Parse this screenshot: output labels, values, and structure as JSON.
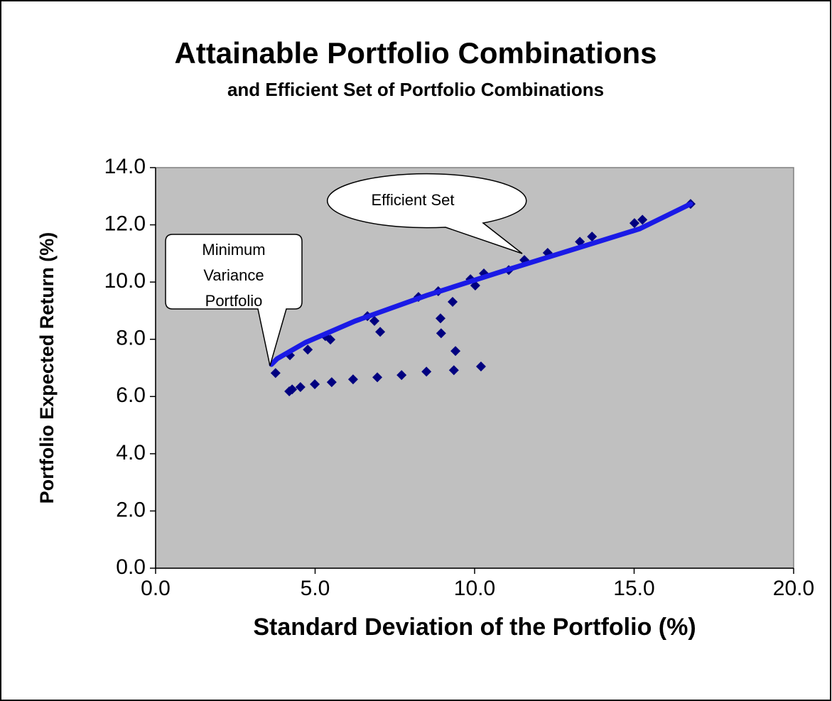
{
  "chart_data": {
    "type": "scatter",
    "title": "Attainable Portfolio Combinations",
    "subtitle": "and Efficient Set of Portfolio Combinations",
    "x_label": "Standard Deviation of the Portfolio (%)",
    "y_label": "Portfolio Expected Return (%)",
    "xlim": [
      0,
      20
    ],
    "ylim": [
      0,
      14
    ],
    "xticks": [
      {
        "value": 0,
        "label": "0.0"
      },
      {
        "value": 5,
        "label": "5.0"
      },
      {
        "value": 10,
        "label": "10.0"
      },
      {
        "value": 15,
        "label": "15.0"
      },
      {
        "value": 20,
        "label": "20.0"
      }
    ],
    "yticks": [
      {
        "value": 0,
        "label": "0.0"
      },
      {
        "value": 2,
        "label": "2.0"
      },
      {
        "value": 4,
        "label": "4.0"
      },
      {
        "value": 6,
        "label": "6.0"
      },
      {
        "value": 8,
        "label": "8.0"
      },
      {
        "value": 10,
        "label": "10.0"
      },
      {
        "value": 12,
        "label": "12.0"
      },
      {
        "value": 14,
        "label": "14.0"
      }
    ],
    "background": "#c0c0c0",
    "series": [
      {
        "kind": "markers",
        "color": "#000080",
        "x": [
          3.76,
          4.21,
          4.77,
          5.32,
          5.48,
          6.64,
          6.86,
          7.04,
          8.24,
          8.86,
          8.93,
          8.95,
          9.31,
          9.4,
          9.35,
          10.2,
          8.49,
          7.71,
          6.95,
          6.19,
          5.52,
          4.99,
          4.54,
          4.28,
          4.19,
          9.87,
          10.02,
          10.29,
          11.07,
          11.56,
          12.29,
          13.3,
          13.68,
          15.01,
          15.26,
          16.77
        ],
        "values": [
          6.82,
          7.44,
          7.64,
          8.11,
          7.99,
          8.81,
          8.64,
          8.26,
          9.48,
          9.68,
          8.73,
          8.21,
          9.31,
          7.59,
          6.92,
          7.05,
          6.87,
          6.75,
          6.67,
          6.6,
          6.5,
          6.43,
          6.33,
          6.25,
          6.18,
          10.1,
          9.88,
          10.3,
          10.42,
          10.77,
          11.02,
          11.41,
          11.59,
          12.06,
          12.18,
          12.73
        ]
      },
      {
        "kind": "line",
        "color": "#1a1ae6",
        "x": [
          3.63,
          3.81,
          4.7,
          6.26,
          8.49,
          10.71,
          12.94,
          15.17,
          16.77
        ],
        "values": [
          7.12,
          7.32,
          7.89,
          8.64,
          9.53,
          10.32,
          11.09,
          11.86,
          12.73
        ]
      }
    ],
    "annotations": [
      {
        "lines": [
          "Efficient Set"
        ]
      },
      {
        "lines": [
          "Minimum",
          "Variance",
          "Portfolio"
        ]
      }
    ]
  }
}
